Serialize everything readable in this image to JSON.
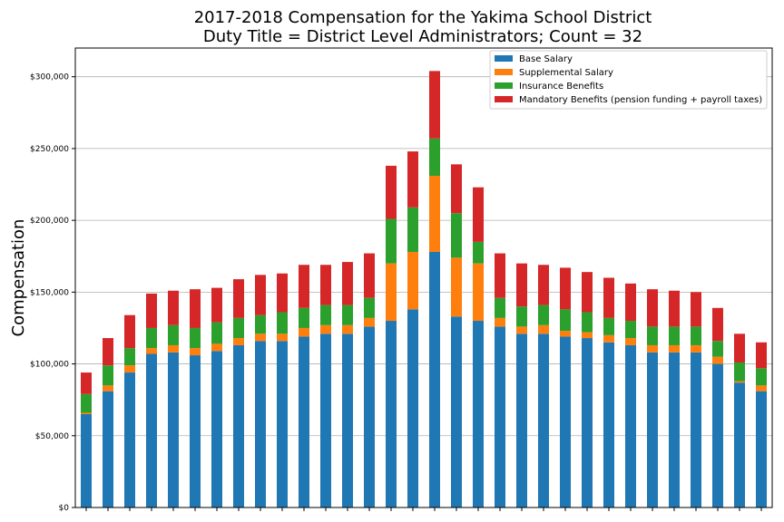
{
  "chart_data": {
    "type": "bar",
    "stacked": true,
    "title_line1": "2017-2018 Compensation for the Yakima School District",
    "title_line2": "Duty Title = District Level Administrators; Count = 32",
    "ylabel": "Compensation",
    "xlabel": "",
    "ylim": [
      0,
      320000
    ],
    "yticks": [
      0,
      50000,
      100000,
      150000,
      200000,
      250000,
      300000
    ],
    "ytick_labels": [
      "$0",
      "$50,000",
      "$100,000",
      "$150,000",
      "$200,000",
      "$250,000",
      "$300,000"
    ],
    "grid": "horizontal",
    "legend_position": "top-right",
    "count": 32,
    "series": [
      {
        "name": "Base Salary",
        "color": "#1f77b4",
        "values": [
          65000,
          81000,
          94000,
          107000,
          108000,
          106000,
          109000,
          113000,
          116000,
          116000,
          119000,
          121000,
          121000,
          126000,
          130000,
          138000,
          178000,
          133000,
          130000,
          126000,
          121000,
          121000,
          119000,
          118000,
          115000,
          113000,
          108000,
          108000,
          108000,
          100000,
          87000,
          81000
        ]
      },
      {
        "name": "Supplemental Salary",
        "color": "#ff7f0e",
        "values": [
          1000,
          4000,
          5000,
          4000,
          5000,
          5000,
          5000,
          5000,
          5000,
          5000,
          6000,
          6000,
          6000,
          6000,
          40000,
          40000,
          53000,
          41000,
          40000,
          6000,
          5000,
          6000,
          4000,
          4000,
          5000,
          5000,
          5000,
          5000,
          5000,
          5000,
          1000,
          4000
        ]
      },
      {
        "name": "Insurance Benefits",
        "color": "#2ca02c",
        "values": [
          13000,
          14000,
          12000,
          14000,
          14000,
          14000,
          15000,
          14000,
          13000,
          15000,
          14000,
          14000,
          14000,
          14000,
          31000,
          31000,
          26000,
          31000,
          15000,
          14000,
          14000,
          14000,
          15000,
          14000,
          12000,
          12000,
          13000,
          13000,
          13000,
          11000,
          13000,
          12000
        ]
      },
      {
        "name": "Mandatory Benefits (pension funding + payroll taxes)",
        "color": "#d62728",
        "values": [
          15000,
          19000,
          23000,
          24000,
          24000,
          27000,
          24000,
          27000,
          28000,
          27000,
          30000,
          28000,
          30000,
          31000,
          37000,
          39000,
          47000,
          34000,
          38000,
          31000,
          30000,
          28000,
          29000,
          28000,
          28000,
          26000,
          26000,
          25000,
          24000,
          23000,
          20000,
          18000
        ]
      }
    ]
  }
}
